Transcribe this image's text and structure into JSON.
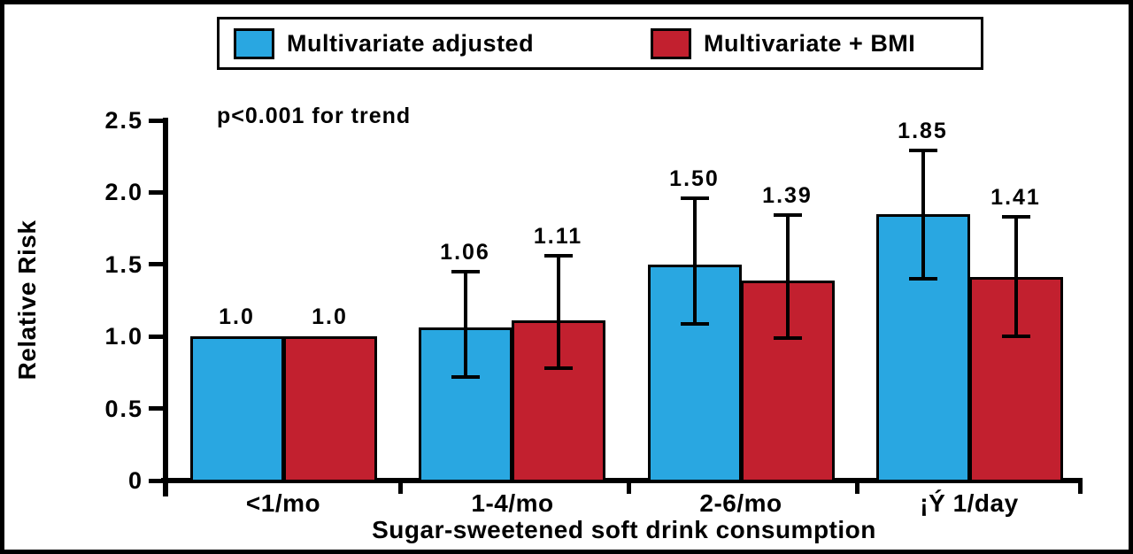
{
  "legend": {
    "items": [
      {
        "label": "Multivariate adjusted",
        "color": "#29A7E1"
      },
      {
        "label": "Multivariate + BMI",
        "color": "#C2202F"
      }
    ]
  },
  "chart_data": {
    "type": "bar",
    "title": "",
    "xlabel": "Sugar-sweetened soft drink consumption",
    "ylabel": "Relative Risk",
    "annotation": "p<0.001 for trend",
    "ylim": [
      0,
      2.5
    ],
    "yticks": [
      0,
      0.5,
      1.0,
      1.5,
      2.0,
      2.5
    ],
    "ytick_labels": [
      "0",
      "0.5",
      "1.0",
      "1.5",
      "2.0",
      "2.5"
    ],
    "grid": false,
    "legend_position": "top",
    "categories": [
      "<1/mo",
      "1-4/mo",
      "2-6/mo",
      "¡Ý 1/day"
    ],
    "series": [
      {
        "name": "Multivariate adjusted",
        "color": "#29A7E1",
        "values": [
          1.0,
          1.06,
          1.5,
          1.85
        ],
        "labels": [
          "1.0",
          "1.06",
          "1.50",
          "1.85"
        ],
        "error_low": [
          null,
          0.72,
          1.09,
          1.4
        ],
        "error_high": [
          null,
          1.45,
          1.96,
          2.29
        ]
      },
      {
        "name": "Multivariate + BMI",
        "color": "#C2202F",
        "values": [
          1.0,
          1.11,
          1.39,
          1.41
        ],
        "labels": [
          "1.0",
          "1.11",
          "1.39",
          "1.41"
        ],
        "error_low": [
          null,
          0.78,
          0.99,
          1.0
        ],
        "error_high": [
          null,
          1.56,
          1.84,
          1.83
        ]
      }
    ]
  }
}
